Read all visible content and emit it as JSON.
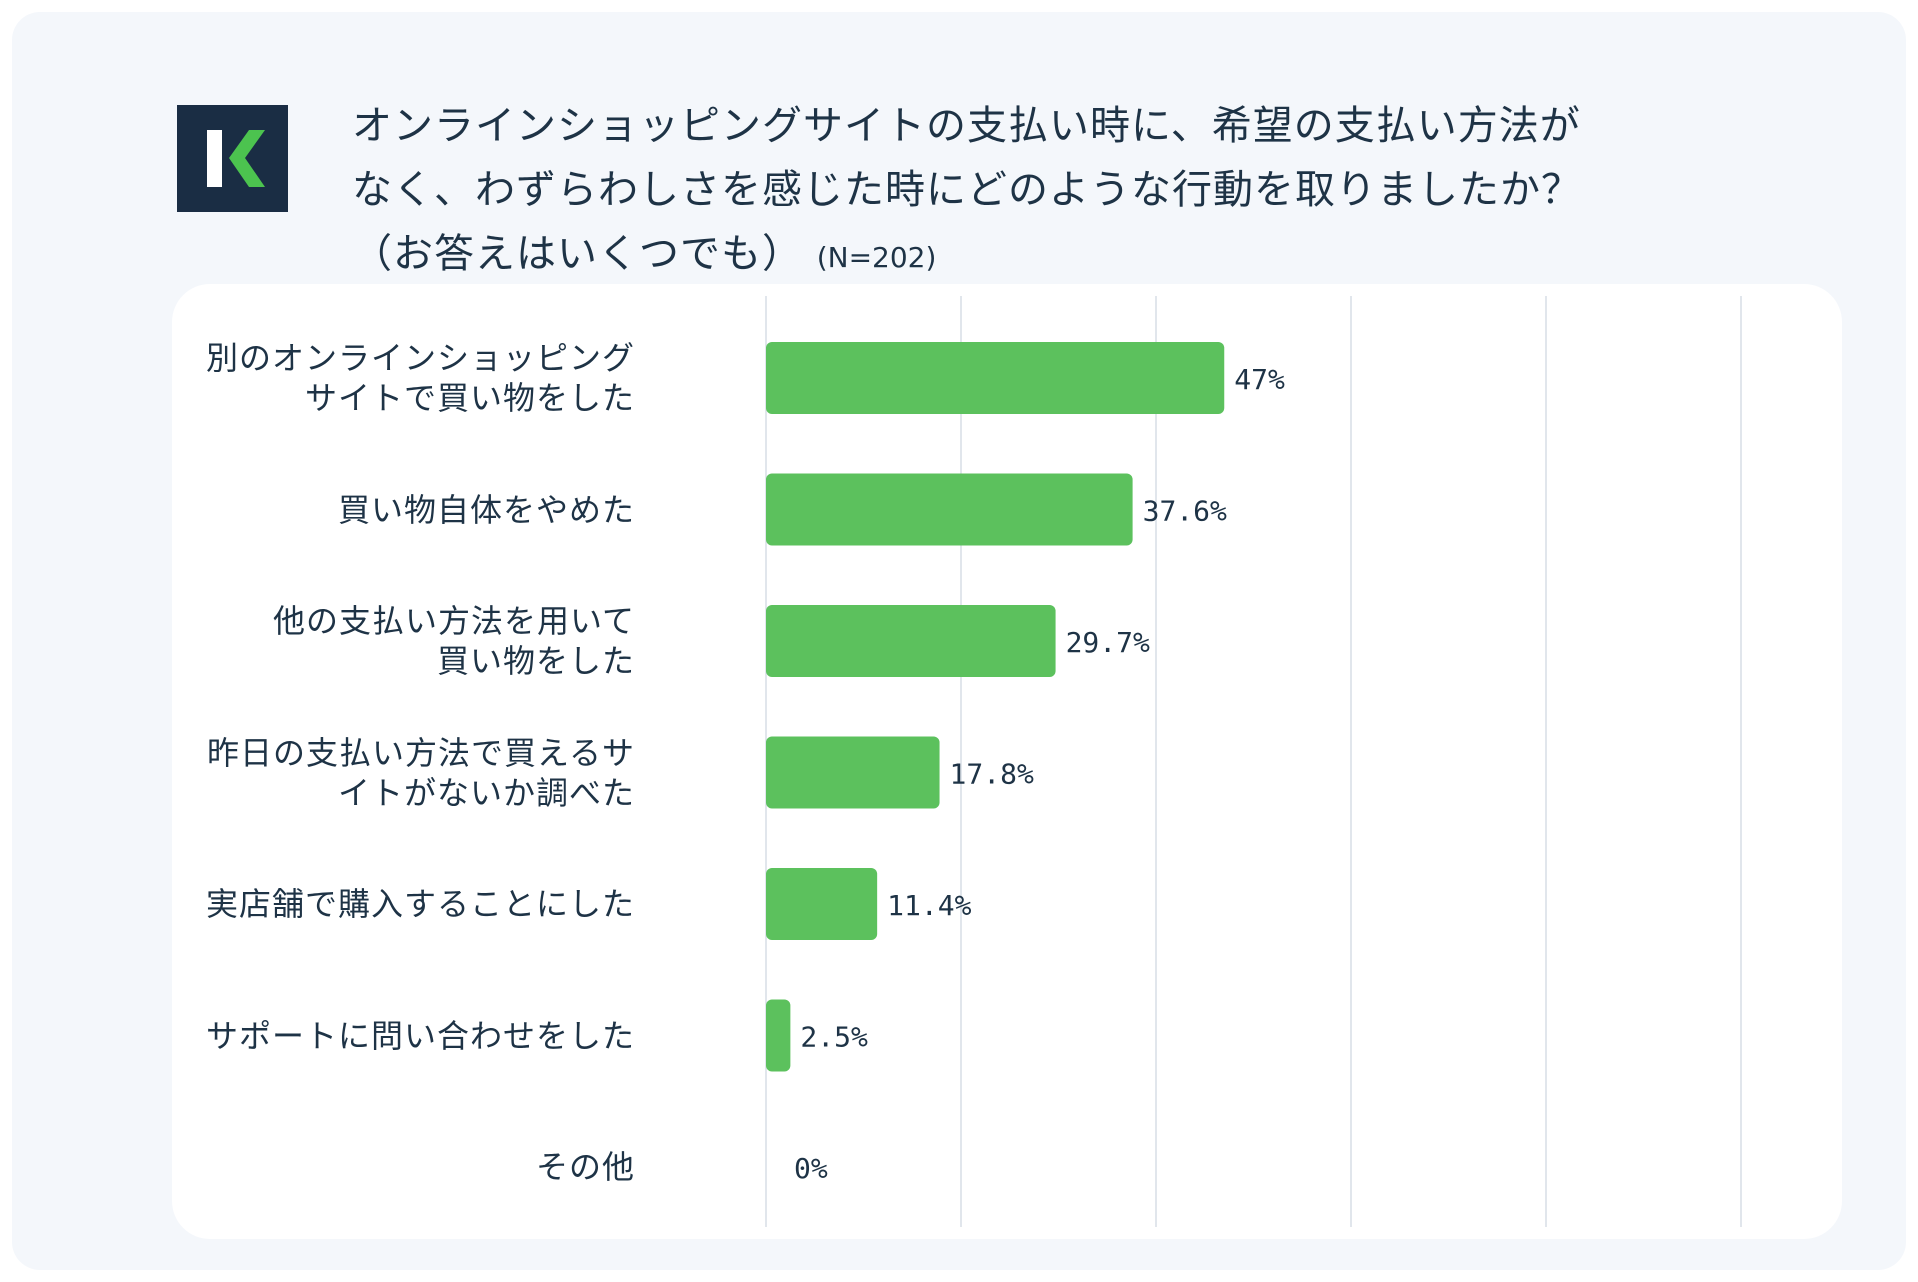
{
  "title": {
    "line1": "オンラインショッピングサイトの支払い時に、希望の支払い方法が",
    "line2": "なく、わずらわしさを感じた時にどのような行動を取りましたか？",
    "line3": "（お答えはいくつでも）",
    "sample": "(N=202)"
  },
  "colors": {
    "bar": "#5cc15d",
    "logo_bg": "#1a2d44",
    "logo_fg": "#ffffff",
    "logo_accent": "#4cc34f",
    "text": "#1e3346",
    "grid": "#d7dee6"
  },
  "chart_data": {
    "type": "bar",
    "orientation": "horizontal",
    "categories": [
      [
        "別のオンラインショッピング",
        "サイトで買い物をした"
      ],
      [
        "買い物自体をやめた"
      ],
      [
        "他の支払い方法を用いて",
        "買い物をした"
      ],
      [
        "昨日の支払い方法で買えるサ",
        "イトがないか調べた"
      ],
      [
        "実店舗で購入することにした"
      ],
      [
        "サポートに問い合わせをした"
      ],
      [
        "その他"
      ]
    ],
    "values": [
      47,
      37.6,
      29.7,
      17.8,
      11.4,
      2.5,
      0
    ],
    "value_labels": [
      "47%",
      "37.6%",
      "29.7%",
      "17.8%",
      "11.4%",
      "2.5%",
      "0%"
    ],
    "xlim": [
      0,
      100
    ],
    "grid": true
  }
}
